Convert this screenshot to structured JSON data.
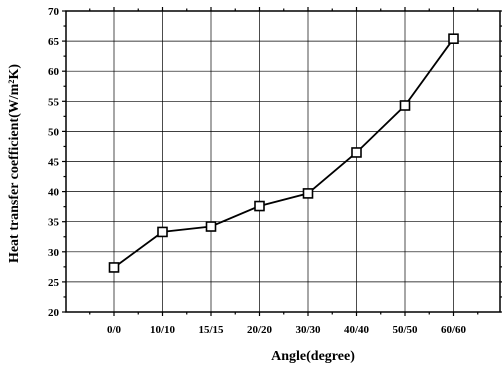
{
  "chart_data": {
    "type": "line",
    "categories": [
      "0/0",
      "10/10",
      "15/15",
      "20/20",
      "30/30",
      "40/40",
      "50/50",
      "60/60"
    ],
    "series": [
      {
        "values": [
          27.4,
          33.3,
          34.2,
          37.6,
          39.7,
          46.5,
          54.3,
          65.4
        ],
        "marker": "open-square",
        "color": "#000000"
      }
    ],
    "xlabel": "Angle(degree)",
    "ylabel": "Heat transfer coefficient(W/m²K)",
    "ylim": [
      20,
      70
    ],
    "yticks": [
      20,
      25,
      30,
      35,
      40,
      45,
      50,
      55,
      60,
      65,
      70
    ],
    "grid": true
  }
}
